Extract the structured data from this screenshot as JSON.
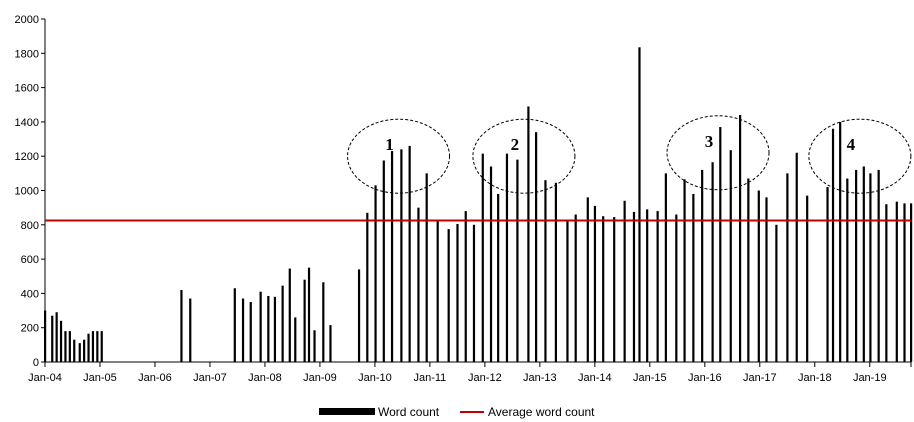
{
  "chart_data": {
    "type": "bar",
    "title": "",
    "xlabel": "",
    "ylabel": "",
    "ylim": [
      0,
      2000
    ],
    "yticks": [
      0,
      200,
      400,
      600,
      800,
      1000,
      1200,
      1400,
      1600,
      1800,
      2000
    ],
    "xlim": [
      2004.0,
      2019.75
    ],
    "xtick_labels": [
      "Jan-04",
      "Jan-05",
      "Jan-06",
      "Jan-07",
      "Jan-08",
      "Jan-09",
      "Jan-10",
      "Jan-11",
      "Jan-12",
      "Jan-13",
      "Jan-14",
      "Jan-15",
      "Jan-16",
      "Jan-17",
      "Jan-18",
      "Jan-19"
    ],
    "grid": false,
    "legend_position": "bottom",
    "series": [
      {
        "name": "Word count",
        "color": "#000000",
        "x": [
          2004.0,
          2004.13,
          2004.21,
          2004.29,
          2004.37,
          2004.45,
          2004.53,
          2004.63,
          2004.71,
          2004.79,
          2004.87,
          2004.95,
          2005.03,
          2006.48,
          2006.64,
          2007.45,
          2007.6,
          2007.74,
          2007.92,
          2008.06,
          2008.18,
          2008.32,
          2008.45,
          2008.55,
          2008.72,
          2008.8,
          2008.9,
          2009.06,
          2009.19,
          2009.71,
          2009.86,
          2010.01,
          2010.16,
          2010.31,
          2010.48,
          2010.63,
          2010.79,
          2010.94,
          2011.14,
          2011.34,
          2011.5,
          2011.65,
          2011.8,
          2011.96,
          2012.11,
          2012.24,
          2012.4,
          2012.59,
          2012.79,
          2012.93,
          2013.1,
          2013.29,
          2013.5,
          2013.65,
          2013.87,
          2014.0,
          2014.15,
          2014.35,
          2014.54,
          2014.71,
          2014.81,
          2014.95,
          2015.14,
          2015.29,
          2015.48,
          2015.63,
          2015.79,
          2015.95,
          2016.14,
          2016.28,
          2016.47,
          2016.64,
          2016.79,
          2016.98,
          2017.12,
          2017.3,
          2017.5,
          2017.67,
          2017.86,
          2018.23,
          2018.33,
          2018.46,
          2018.59,
          2018.75,
          2018.89,
          2019.01,
          2019.16,
          2019.3,
          2019.49,
          2019.63,
          2019.75
        ],
        "values": [
          300,
          270,
          290,
          240,
          180,
          180,
          130,
          110,
          130,
          165,
          180,
          180,
          180,
          420,
          370,
          430,
          370,
          350,
          410,
          385,
          380,
          445,
          545,
          260,
          480,
          550,
          185,
          465,
          215,
          540,
          870,
          1030,
          1175,
          1230,
          1240,
          1260,
          900,
          1100,
          820,
          775,
          805,
          880,
          800,
          1215,
          1140,
          980,
          1215,
          1180,
          1490,
          1340,
          1060,
          1045,
          820,
          860,
          960,
          910,
          850,
          845,
          940,
          875,
          1835,
          890,
          880,
          1100,
          860,
          1065,
          980,
          1120,
          1165,
          1370,
          1235,
          1440,
          1070,
          1000,
          960,
          800,
          1100,
          1220,
          970,
          1020,
          1360,
          1400,
          1070,
          1120,
          1140,
          1100,
          1120,
          920,
          935,
          925,
          925
        ]
      },
      {
        "name": "Average word count",
        "color": "#c00000",
        "type": "line",
        "value": 825
      }
    ],
    "annotations": [
      {
        "label": "1",
        "x": 2010.43,
        "y": 1200
      },
      {
        "label": "2",
        "x": 2012.71,
        "y": 1200
      },
      {
        "label": "3",
        "x": 2016.24,
        "y": 1220
      },
      {
        "label": "4",
        "x": 2018.82,
        "y": 1200
      }
    ]
  }
}
